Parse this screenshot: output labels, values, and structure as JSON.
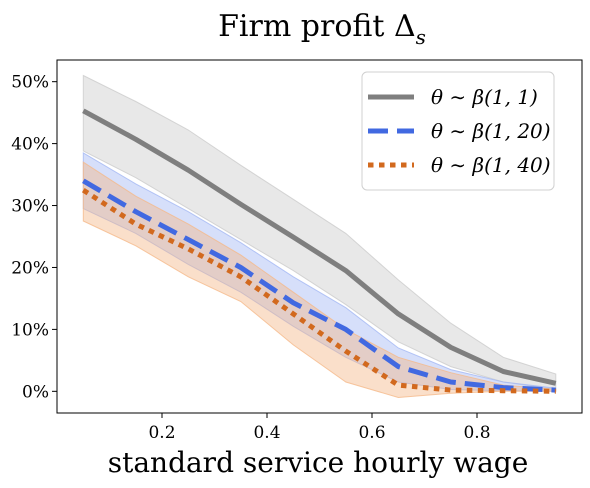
{
  "chart_data": {
    "type": "line",
    "title": "Firm profit Δ",
    "title_subscript": "s",
    "xlabel": "standard service hourly wage",
    "ylabel": "",
    "xlim": [
      0.0,
      1.0
    ],
    "ylim": [
      -0.035,
      0.535
    ],
    "x_ticks": [
      0.2,
      0.4,
      0.6,
      0.8
    ],
    "x_tick_labels": [
      "0.2",
      "0.4",
      "0.6",
      "0.8"
    ],
    "y_ticks": [
      0,
      0.1,
      0.2,
      0.3,
      0.4,
      0.5
    ],
    "y_tick_labels": [
      "0%",
      "10%",
      "20%",
      "30%",
      "40%",
      "50%"
    ],
    "grid": false,
    "legend_position": "top-right",
    "x": [
      0.05,
      0.15,
      0.25,
      0.35,
      0.45,
      0.55,
      0.65,
      0.75,
      0.85,
      0.95
    ],
    "series": [
      {
        "name": "θ ∼ β(1, 1)",
        "color": "#7f7f7f",
        "band_color": "#cccccc",
        "dash": "solid",
        "values": [
          0.453,
          0.407,
          0.357,
          0.302,
          0.249,
          0.195,
          0.125,
          0.071,
          0.032,
          0.013
        ],
        "lower": [
          0.388,
          0.345,
          0.295,
          0.245,
          0.195,
          0.14,
          0.08,
          0.04,
          0.015,
          0.003
        ],
        "upper": [
          0.51,
          0.468,
          0.422,
          0.365,
          0.31,
          0.255,
          0.18,
          0.11,
          0.055,
          0.028
        ]
      },
      {
        "name": "θ ∼ β(1, 20)",
        "color": "#4169e1",
        "band_color": "#a4b8f4",
        "dash": "dashed",
        "values": [
          0.34,
          0.29,
          0.245,
          0.2,
          0.143,
          0.1,
          0.04,
          0.015,
          0.006,
          0.002
        ],
        "lower": [
          0.295,
          0.255,
          0.205,
          0.16,
          0.105,
          0.055,
          0.015,
          0.003,
          0.001,
          0.0
        ],
        "upper": [
          0.385,
          0.335,
          0.29,
          0.24,
          0.185,
          0.135,
          0.07,
          0.035,
          0.015,
          0.005
        ]
      },
      {
        "name": "θ ∼ β(1, 40)",
        "color": "#d2691e",
        "band_color": "#f5b98a",
        "dash": "dotted",
        "values": [
          0.325,
          0.27,
          0.23,
          0.185,
          0.125,
          0.065,
          0.01,
          0.002,
          0.001,
          0.0
        ],
        "lower": [
          0.275,
          0.235,
          0.185,
          0.145,
          0.075,
          0.015,
          -0.01,
          -0.003,
          0.0,
          0.0
        ],
        "upper": [
          0.37,
          0.315,
          0.27,
          0.22,
          0.16,
          0.1,
          0.055,
          0.03,
          0.01,
          0.003
        ]
      }
    ]
  }
}
